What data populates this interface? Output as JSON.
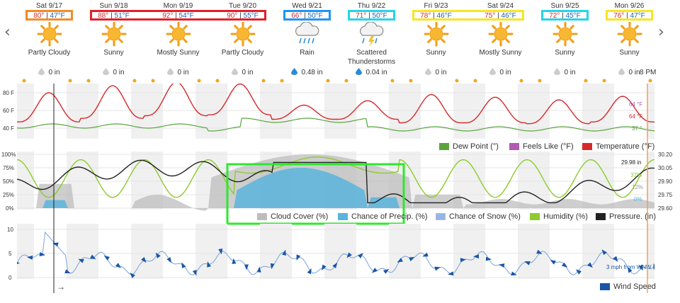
{
  "nav": {
    "prev_glyph": "‹",
    "next_glyph": "›"
  },
  "days": [
    {
      "date": "Sat 9/17",
      "hi": "80°",
      "lo": "47°F",
      "cond": "Partly Cloudy",
      "cond2": "",
      "precip": "0 in",
      "icon": "partly-cloudy-icon",
      "box": "#f28c28"
    },
    {
      "date": "Sun 9/18",
      "hi": "88°",
      "lo": "51°F",
      "cond": "Sunny",
      "cond2": "",
      "precip": "0 in",
      "icon": "sun-icon",
      "box": "#e0212c"
    },
    {
      "date": "Mon 9/19",
      "hi": "92°",
      "lo": "54°F",
      "cond": "Mostly Sunny",
      "cond2": "",
      "precip": "0 in",
      "icon": "sun-icon",
      "box": "#e0212c"
    },
    {
      "date": "Tue 9/20",
      "hi": "90°",
      "lo": "55°F",
      "cond": "Partly Cloudy",
      "cond2": "",
      "precip": "0 in",
      "icon": "partly-cloudy-icon",
      "box": "#e0212c"
    },
    {
      "date": "Wed 9/21",
      "hi": "66°",
      "lo": "50°F",
      "cond": "Rain",
      "cond2": "",
      "precip": "0.48 in",
      "icon": "rain-icon",
      "box": "#2196f3"
    },
    {
      "date": "Thu 9/22",
      "hi": "71°",
      "lo": "50°F",
      "cond": "Scattered",
      "cond2": "Thunderstorms",
      "precip": "0.04 in",
      "icon": "thunderstorm-icon",
      "box": "#26d4e8"
    },
    {
      "date": "Fri 9/23",
      "hi": "78°",
      "lo": "46°F",
      "cond": "Sunny",
      "cond2": "",
      "precip": "0 in",
      "icon": "sun-icon",
      "box": "#f7e525"
    },
    {
      "date": "Sat 9/24",
      "hi": "75°",
      "lo": "46°F",
      "cond": "Mostly Sunny",
      "cond2": "",
      "precip": "0 in",
      "icon": "sun-icon",
      "box": "#f7e525"
    },
    {
      "date": "Sun 9/25",
      "hi": "72°",
      "lo": "45°F",
      "cond": "Sunny",
      "cond2": "",
      "precip": "0 in",
      "icon": "sun-icon",
      "box": "#26d4e8"
    },
    {
      "date": "Mon 9/26",
      "hi": "76°",
      "lo": "47°F",
      "cond": "Sunny",
      "cond2": "",
      "precip": "0 in",
      "icon": "sun-icon",
      "box": "#f7e525"
    }
  ],
  "grouped_boxes": [
    {
      "from": 1,
      "to": 3,
      "color": "#e0212c"
    },
    {
      "from": 6,
      "to": 7,
      "color": "#f7e525"
    }
  ],
  "now_time": "8 PM",
  "colors": {
    "temperature": "#d6292a",
    "feels_like": "#b05cb2",
    "dew_point": "#5aa43e",
    "cloud": "#bdbdbd",
    "precip": "#5ab4dc",
    "snow": "#e8a0c8",
    "humidity": "#8ccc2c",
    "pressure": "#222222",
    "wind": "#1a56a6",
    "highlight": "#2ee82e",
    "now_line": "#f5a05a"
  },
  "panel1": {
    "y_labels": [
      "80 F",
      "60 F",
      "40 F"
    ],
    "right_labels": {
      "feels": "64 °F",
      "temp": "64 °F",
      "dew": "37 °"
    },
    "legend": [
      "Dew Point (°)",
      "Feels Like (°F)",
      "Temperature (°F)"
    ]
  },
  "panel2": {
    "y_left": [
      "100%",
      "75%",
      "50%",
      "25%",
      "0%"
    ],
    "y_right": [
      "30.20",
      "30.05",
      "29.90",
      "29.75",
      "29.60"
    ],
    "right_labels": {
      "pressure": "29.98 in",
      "humidity": "37%",
      "cloud": "12%",
      "precip": "0%"
    },
    "legend": [
      "Cloud Cover (%)",
      "Chance of Precip. (%)",
      "Chance of Snow (%)",
      "Humidity (%)",
      "Pressure. (in)"
    ]
  },
  "panel3": {
    "y_labels": [
      "10",
      "5",
      "0"
    ],
    "right_label": "3 mph from WNW",
    "legend": "Wind Speed",
    "arrow": "→"
  }
}
